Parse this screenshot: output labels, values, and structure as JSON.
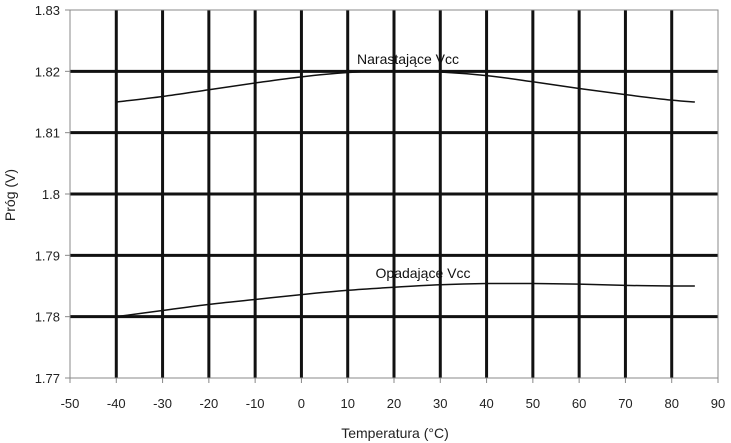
{
  "chart_data": {
    "type": "line",
    "title": "",
    "xlabel": "Temperatura (°C)",
    "ylabel": "Próg (V)",
    "xlim": [
      -50,
      90
    ],
    "ylim": [
      1.77,
      1.83
    ],
    "x_ticks": [
      -50,
      -40,
      -30,
      -20,
      -10,
      0,
      10,
      20,
      30,
      40,
      50,
      60,
      70,
      80,
      90
    ],
    "y_ticks": [
      1.77,
      1.78,
      1.79,
      1.8,
      1.81,
      1.82,
      1.83
    ],
    "x_tick_labels": [
      "-50",
      "-40",
      "-30",
      "-20",
      "-10",
      "0",
      "10",
      "20",
      "30",
      "40",
      "50",
      "60",
      "70",
      "80",
      "90"
    ],
    "y_tick_labels": [
      "1.77",
      "1.78",
      "1.79",
      "1.8",
      "1.81",
      "1.82",
      "1.83"
    ],
    "grid": true,
    "legend": "none",
    "series": [
      {
        "name": "Narastające Vcc",
        "color": "#111111",
        "x": [
          -40,
          -30,
          -20,
          -10,
          0,
          10,
          20,
          30,
          40,
          50,
          60,
          70,
          80,
          85
        ],
        "y": [
          1.815,
          1.8159,
          1.817,
          1.8181,
          1.8191,
          1.8198,
          1.8201,
          1.8199,
          1.8193,
          1.8183,
          1.8172,
          1.8162,
          1.8153,
          1.815
        ]
      },
      {
        "name": "Opadające Vcc",
        "color": "#111111",
        "x": [
          -40,
          -30,
          -20,
          -10,
          0,
          10,
          20,
          30,
          40,
          50,
          60,
          70,
          80,
          85
        ],
        "y": [
          1.78,
          1.781,
          1.782,
          1.7828,
          1.7836,
          1.7843,
          1.7848,
          1.7852,
          1.7854,
          1.7854,
          1.7853,
          1.7851,
          1.785,
          1.785
        ]
      }
    ]
  }
}
